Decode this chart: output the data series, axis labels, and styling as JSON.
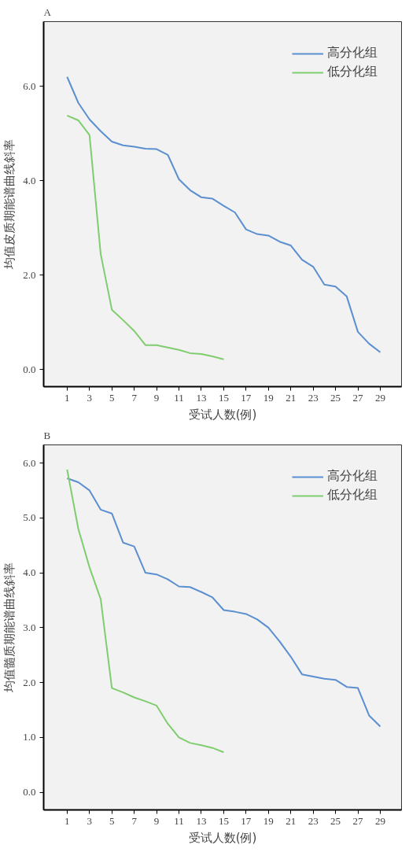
{
  "chart_data": [
    {
      "type": "line",
      "title": "A",
      "xlabel": "受试人数(例)",
      "ylabel": "均值皮质期能谱曲线斜率",
      "legend": "top right",
      "grid": false,
      "x": [
        1,
        2,
        3,
        4,
        5,
        6,
        7,
        8,
        9,
        10,
        11,
        12,
        13,
        14,
        15,
        16,
        17,
        18,
        19,
        20,
        21,
        22,
        23,
        24,
        25,
        26,
        27,
        28,
        29
      ],
      "xlim": [
        -1.1,
        30.9
      ],
      "xticks": [
        1,
        3,
        5,
        7,
        9,
        11,
        13,
        15,
        17,
        19,
        21,
        23,
        25,
        27,
        29
      ],
      "ylim": [
        -0.36,
        7.37
      ],
      "yticks": [
        {
          "value": 0,
          "label": "0.0"
        },
        {
          "value": 2,
          "label": "2.0"
        },
        {
          "value": 4,
          "label": "4.0"
        },
        {
          "value": 6,
          "label": "6.0"
        }
      ],
      "series": [
        {
          "name": "高分化组",
          "color": "#5b8fd0",
          "values": [
            6.2,
            5.65,
            5.3,
            5.05,
            4.83,
            4.75,
            4.72,
            4.68,
            4.67,
            4.55,
            4.03,
            3.8,
            3.65,
            3.62,
            3.47,
            3.33,
            2.97,
            2.87,
            2.84,
            2.71,
            2.63,
            2.33,
            2.18,
            1.8,
            1.76,
            1.55,
            0.8,
            0.55,
            0.37
          ]
        },
        {
          "name": "低分化组",
          "color": "#7fcd6e",
          "values": [
            5.38,
            5.28,
            4.97,
            2.45,
            1.27,
            1.05,
            0.82,
            0.52,
            0.52,
            0.47,
            0.42,
            0.35,
            0.33,
            0.28,
            0.22,
            null,
            null,
            null,
            null,
            null,
            null,
            null,
            null,
            null,
            null,
            null,
            null,
            null,
            null
          ]
        }
      ]
    },
    {
      "type": "line",
      "title": "B",
      "xlabel": "受试人数(例)",
      "ylabel": "均值髓质期能谱曲线斜率",
      "legend": "top right",
      "grid": false,
      "x": [
        1,
        2,
        3,
        4,
        5,
        6,
        7,
        8,
        9,
        10,
        11,
        12,
        13,
        14,
        15,
        16,
        17,
        18,
        19,
        20,
        21,
        22,
        23,
        24,
        25,
        26,
        27,
        28,
        29
      ],
      "xlim": [
        -1.1,
        30.9
      ],
      "xticks": [
        1,
        3,
        5,
        7,
        9,
        11,
        13,
        15,
        17,
        19,
        21,
        23,
        25,
        27,
        29
      ],
      "ylim": [
        -0.32,
        6.33
      ],
      "yticks": [
        {
          "value": 0,
          "label": "0.0"
        },
        {
          "value": 1,
          "label": "1.0"
        },
        {
          "value": 2,
          "label": "2.0"
        },
        {
          "value": 3,
          "label": "3.0"
        },
        {
          "value": 4,
          "label": "4.0"
        },
        {
          "value": 5,
          "label": "5.0"
        },
        {
          "value": 6,
          "label": "6.0"
        }
      ],
      "series": [
        {
          "name": "高分化组",
          "color": "#5b8fd0",
          "values": [
            5.72,
            5.65,
            5.5,
            5.15,
            5.08,
            4.55,
            4.48,
            4.0,
            3.97,
            3.88,
            3.75,
            3.74,
            3.65,
            3.55,
            3.32,
            3.29,
            3.25,
            3.15,
            3.0,
            2.75,
            2.47,
            2.15,
            2.11,
            2.07,
            2.05,
            1.92,
            1.9,
            1.4,
            1.2
          ]
        },
        {
          "name": "低分化组",
          "color": "#7fcd6e",
          "values": [
            5.88,
            4.8,
            4.1,
            3.52,
            1.9,
            1.82,
            1.73,
            1.66,
            1.58,
            1.25,
            1.0,
            0.9,
            0.86,
            0.81,
            0.73,
            null,
            null,
            null,
            null,
            null,
            null,
            null,
            null,
            null,
            null,
            null,
            null,
            null,
            null
          ]
        }
      ]
    }
  ]
}
